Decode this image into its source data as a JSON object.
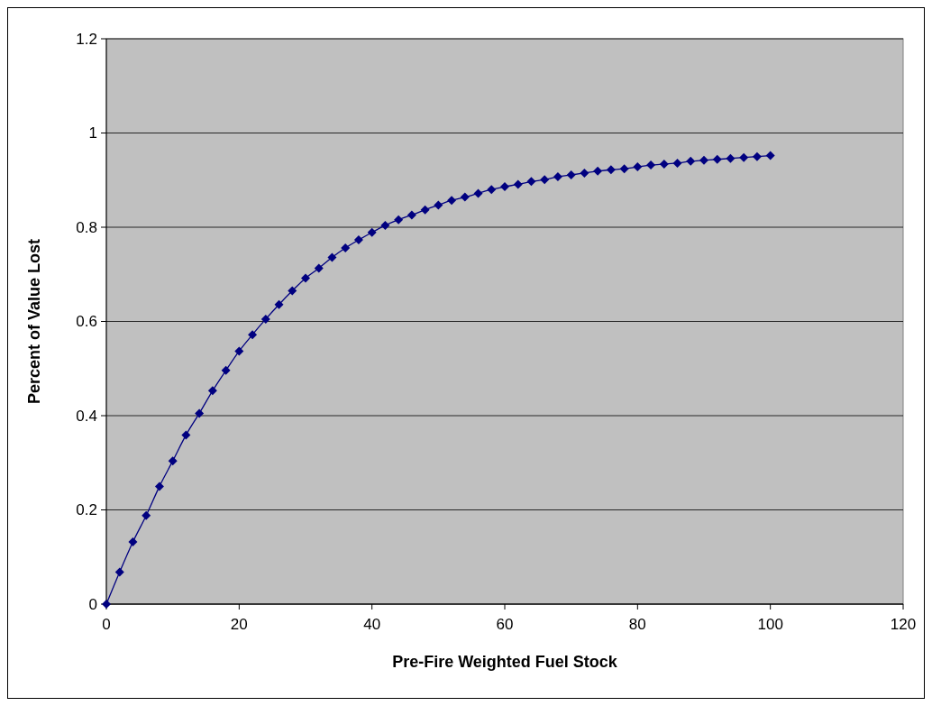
{
  "chart_data": {
    "type": "line",
    "xlabel": "Pre-Fire Weighted Fuel Stock",
    "ylabel": "Percent of Value Lost",
    "x": [
      0,
      2,
      4,
      6,
      8,
      10,
      12,
      14,
      16,
      18,
      20,
      22,
      24,
      26,
      28,
      30,
      32,
      34,
      36,
      38,
      40,
      42,
      44,
      46,
      48,
      50,
      52,
      54,
      56,
      58,
      60,
      62,
      64,
      66,
      68,
      70,
      72,
      74,
      76,
      78,
      80,
      82,
      84,
      86,
      88,
      90,
      92,
      94,
      96,
      98,
      100
    ],
    "series": [
      {
        "color": "#000080",
        "values": [
          0,
          0.068,
          0.132,
          0.188,
          0.25,
          0.304,
          0.359,
          0.405,
          0.453,
          0.496,
          0.537,
          0.572,
          0.605,
          0.636,
          0.665,
          0.692,
          0.713,
          0.736,
          0.756,
          0.773,
          0.789,
          0.804,
          0.816,
          0.826,
          0.837,
          0.847,
          0.857,
          0.864,
          0.872,
          0.88,
          0.886,
          0.891,
          0.897,
          0.901,
          0.907,
          0.911,
          0.915,
          0.919,
          0.922,
          0.924,
          0.928,
          0.932,
          0.934,
          0.936,
          0.94,
          0.942,
          0.944,
          0.946,
          0.948,
          0.95,
          0.952
        ]
      }
    ],
    "xlim": [
      0,
      120
    ],
    "xticks": [
      0,
      20,
      40,
      60,
      80,
      100,
      120
    ],
    "ylim": [
      0,
      1.2
    ],
    "yticks": [
      0,
      {
        "value": 0.2,
        "label": "0.2"
      },
      {
        "value": 0.4,
        "label": "0.4"
      },
      {
        "value": 0.6,
        "label": "0.6"
      },
      {
        "value": 0.8,
        "label": "0.8"
      },
      1,
      {
        "value": 1.2,
        "label": "1.2"
      }
    ],
    "grid": "y",
    "marker": "diamond",
    "line_style": "solid"
  }
}
